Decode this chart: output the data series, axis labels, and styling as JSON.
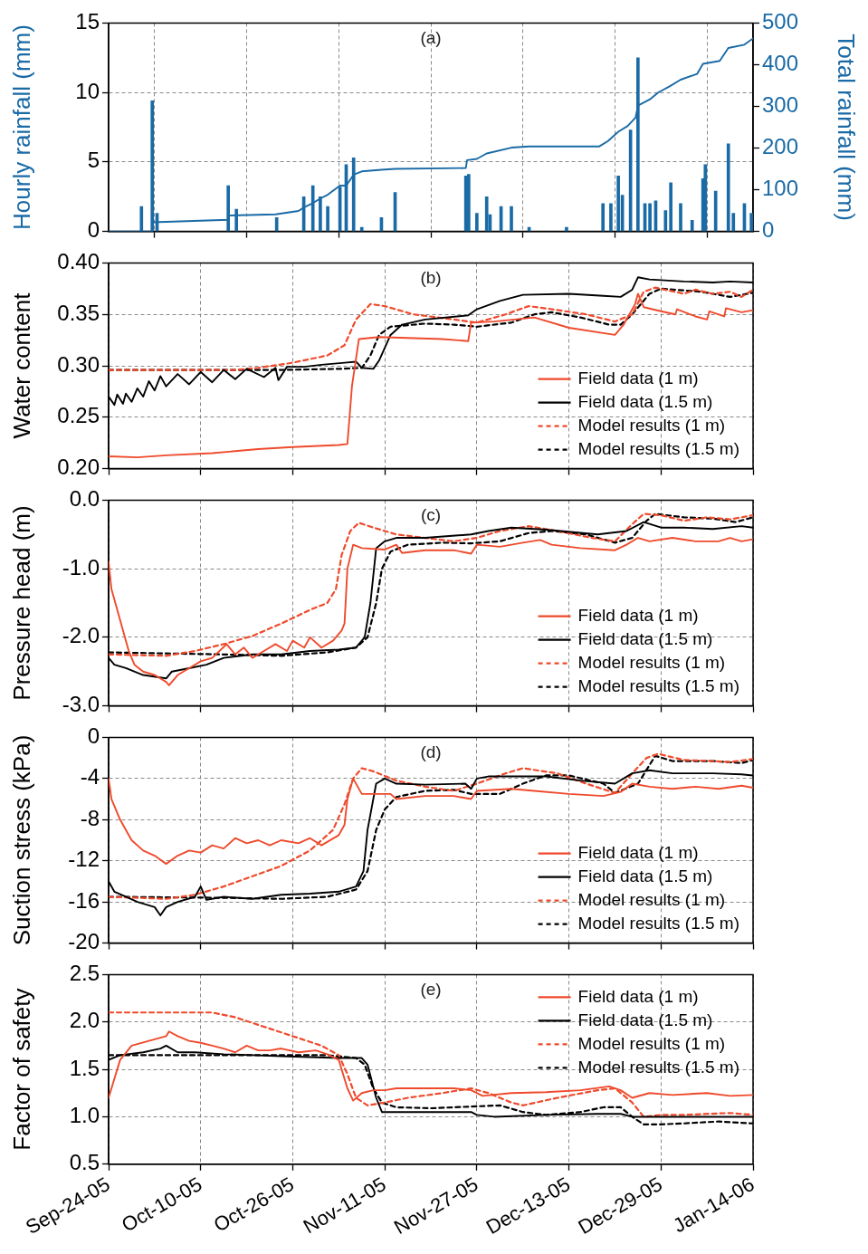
{
  "chart_data": [
    {
      "type": "bar",
      "annotations": [
        "(a)"
      ],
      "ylabel": "Hourly rainfall (mm)",
      "y2label": "Total rainfall (mm)",
      "xlim": [
        "2005-09-24",
        "2006-01-14"
      ],
      "xticks": [
        {
          "value": "2005-09-24",
          "label": null
        },
        {
          "value": "2005-10-10",
          "label": null
        },
        {
          "value": "2005-10-26",
          "label": null
        },
        {
          "value": "2005-11-11",
          "label": null
        },
        {
          "value": "2005-11-27",
          "label": null
        },
        {
          "value": "2005-12-13",
          "label": null
        },
        {
          "value": "2005-12-29",
          "label": null
        },
        {
          "value": "2006-01-14",
          "label": null
        }
      ],
      "ylim": [
        0,
        15
      ],
      "yticks": [
        0,
        5,
        10,
        15
      ],
      "y2lim": [
        0,
        500
      ],
      "y2ticks": [
        0,
        100,
        200,
        300,
        400,
        500
      ],
      "grid": true,
      "tick_labels": "y",
      "series": [
        {
          "type": "bar",
          "color": "#1a6aa6",
          "x": [
            "2005-09-29T17:00",
            "2005-10-01T14:00",
            "2005-10-02T10:00",
            "2005-10-14T19:00",
            "2005-10-16T05:00",
            "2005-10-23T05:00",
            "2005-10-27T22:00",
            "2005-10-29T12:00",
            "2005-10-30T19:00",
            "2005-11-01T02:00",
            "2005-11-03T05:00",
            "2005-11-04T07:00",
            "2005-11-05T14:00",
            "2005-11-07T00:00",
            "2005-11-10T10:00",
            "2005-11-12T19:00",
            "2005-11-25T02:00",
            "2005-11-25T14:00",
            "2005-11-27T00:00",
            "2005-11-28T17:00",
            "2005-11-29T07:00",
            "2005-12-01T05:00",
            "2005-12-03T00:00",
            "2005-12-06T02:00",
            "2005-12-12T14:00",
            "2005-12-18T22:00",
            "2005-12-20T07:00",
            "2005-12-21T14:00",
            "2005-12-22T07:00",
            "2005-12-23T17:00",
            "2005-12-25T00:00",
            "2005-12-26T05:00",
            "2005-12-27T02:00",
            "2005-12-28T02:00",
            "2005-12-29T19:00",
            "2005-12-30T17:00",
            "2006-01-01T10:00",
            "2006-01-03T10:00",
            "2006-01-05T07:00",
            "2006-01-05T17:00",
            "2006-01-07T12:00",
            "2006-01-09T17:00",
            "2006-01-10T14:00",
            "2006-01-12T12:00",
            "2006-01-13T17:00"
          ],
          "values": [
            1.8,
            9.4,
            1.3,
            3.3,
            1.6,
            1.0,
            2.5,
            3.3,
            2.5,
            1.8,
            3.2,
            4.8,
            5.3,
            0.3,
            1.0,
            2.8,
            4.0,
            4.1,
            1.3,
            2.5,
            1.2,
            1.8,
            1.8,
            0.3,
            0.3,
            2.0,
            2.0,
            4.0,
            2.6,
            7.3,
            12.5,
            2.0,
            2.0,
            2.2,
            1.5,
            3.5,
            2.0,
            0.8,
            3.8,
            4.8,
            2.9,
            6.3,
            1.3,
            2.0,
            1.3
          ]
        },
        {
          "type": "line",
          "axis": "y2",
          "color": "#1a6aa6",
          "line_style": "solid",
          "x": [
            "2005-09-24",
            "2005-10-01T14:00",
            "2005-10-01T14:00",
            "2005-10-14T19:00",
            "2005-10-14T19:00",
            "2005-10-23",
            "2005-10-27",
            "2005-10-28",
            "2005-10-29T12:00",
            "2005-10-30T19:00",
            "2005-11-01T02:00",
            "2005-11-03T05:00",
            "2005-11-04T07:00",
            "2005-11-05T14:00",
            "2005-11-07",
            "2005-11-10T10:00",
            "2005-11-12T19:00",
            "2005-11-25T02:00",
            "2005-11-25T07:00",
            "2005-11-27",
            "2005-11-28T17:00",
            "2005-12-03",
            "2005-12-06T02:00",
            "2005-12-18T07:00",
            "2005-12-19T19:00",
            "2005-12-21T14:00",
            "2005-12-23T05:00",
            "2005-12-24T14:00",
            "2005-12-25",
            "2005-12-27T02:00",
            "2005-12-28T12:00",
            "2005-12-30T12:00",
            "2006-01-01T10:00",
            "2006-01-04T07:00",
            "2006-01-05T07:00",
            "2006-01-08T05:00",
            "2006-01-09T17:00",
            "2006-01-12T12:00",
            "2006-01-14"
          ],
          "values": [
            0,
            0,
            22,
            28,
            38,
            41,
            49,
            58,
            68,
            79,
            88,
            110,
            110,
            136,
            144,
            148,
            150,
            152,
            171,
            174,
            187,
            201,
            204,
            204,
            217,
            239,
            253,
            273,
            302,
            317,
            333,
            348,
            364,
            378,
            402,
            409,
            440,
            448,
            463
          ]
        }
      ]
    },
    {
      "type": "line",
      "annotations": [
        "(b)"
      ],
      "ylabel": "Water content",
      "xlim": [
        "2005-09-24",
        "2006-01-14"
      ],
      "xticks": [
        {
          "value": "2005-09-24",
          "label": null
        },
        {
          "value": "2005-10-10",
          "label": null
        },
        {
          "value": "2005-10-26",
          "label": null
        },
        {
          "value": "2005-11-11",
          "label": null
        },
        {
          "value": "2005-11-27",
          "label": null
        },
        {
          "value": "2005-12-13",
          "label": null
        },
        {
          "value": "2005-12-29",
          "label": null
        },
        {
          "value": "2006-01-14",
          "label": null
        }
      ],
      "ylim": [
        0.2,
        0.4
      ],
      "yticks": [
        {
          "value": 0.2,
          "label": "0.20"
        },
        0.25,
        {
          "value": 0.3,
          "label": "0.30"
        },
        0.35,
        {
          "value": 0.4,
          "label": "0.40"
        }
      ],
      "grid": true,
      "legend": "bottom right",
      "tick_labels": "y",
      "series": [
        {
          "name": "Field data (1 m)",
          "color": "#ef4a2c",
          "line_style": "solid",
          "x": [
            "2005-09-24",
            "2005-09-29",
            "2005-10-04",
            "2005-10-12",
            "2005-10-20",
            "2005-10-26",
            "2005-11-03",
            "2005-11-04T12:00",
            "2005-11-05T07:00",
            "2005-11-06T12:00",
            "2005-11-10",
            "2005-11-21",
            "2005-11-25T12:00",
            "2005-11-26",
            "2005-11-30",
            "2005-12-07",
            "2005-12-13",
            "2005-12-21",
            "2005-12-22T12:00",
            "2005-12-24T12:00",
            "2005-12-25",
            "2005-12-26",
            "2005-12-29",
            "2005-12-31T12:00",
            "2005-12-31T19:00",
            "2006-01-04",
            "2006-01-06",
            "2006-01-06T10:00",
            "2006-01-09",
            "2006-01-09T07:00",
            "2006-01-12",
            "2006-01-14"
          ],
          "values": [
            0.212,
            0.211,
            0.213,
            0.215,
            0.219,
            0.221,
            0.223,
            0.224,
            0.28,
            0.326,
            0.328,
            0.326,
            0.324,
            0.342,
            0.343,
            0.347,
            0.337,
            0.33,
            0.34,
            0.36,
            0.37,
            0.357,
            0.353,
            0.35,
            0.355,
            0.348,
            0.345,
            0.353,
            0.348,
            0.356,
            0.352,
            0.354
          ]
        },
        {
          "name": "Field data (1.5 m)",
          "color": "#000000",
          "line_style": "solid",
          "x": [
            "2005-09-24",
            "2005-09-25",
            "2005-09-25T12:00",
            "2005-09-26T12:00",
            "2005-09-27",
            "2005-09-28",
            "2005-09-29",
            "2005-09-30",
            "2005-10-01",
            "2005-10-02",
            "2005-10-03",
            "2005-10-04",
            "2005-10-06",
            "2005-10-08",
            "2005-10-10",
            "2005-10-12",
            "2005-10-14",
            "2005-10-16",
            "2005-10-18",
            "2005-10-21",
            "2005-10-23",
            "2005-10-23T12:00",
            "2005-10-25",
            "2005-10-28",
            "2005-10-31",
            "2005-11-04",
            "2005-11-06",
            "2005-11-07",
            "2005-11-09",
            "2005-11-10",
            "2005-11-12",
            "2005-11-14",
            "2005-11-18",
            "2005-11-25T12:00",
            "2005-11-27",
            "2005-12-01",
            "2005-12-05",
            "2005-12-13",
            "2005-12-19",
            "2005-12-22",
            "2005-12-24",
            "2005-12-25",
            "2005-12-27",
            "2006-01-02",
            "2006-01-07",
            "2006-01-10",
            "2006-01-14"
          ],
          "values": [
            0.27,
            0.262,
            0.272,
            0.263,
            0.273,
            0.265,
            0.278,
            0.27,
            0.285,
            0.276,
            0.29,
            0.28,
            0.292,
            0.282,
            0.294,
            0.284,
            0.296,
            0.287,
            0.297,
            0.289,
            0.298,
            0.286,
            0.299,
            0.299,
            0.301,
            0.303,
            0.304,
            0.298,
            0.297,
            0.305,
            0.33,
            0.34,
            0.345,
            0.349,
            0.355,
            0.363,
            0.369,
            0.37,
            0.368,
            0.367,
            0.374,
            0.386,
            0.384,
            0.382,
            0.381,
            0.382,
            0.381
          ]
        },
        {
          "name": "Model results (1 m)",
          "color": "#ef4a2c",
          "line_style": "dashed",
          "x": [
            "2005-09-24",
            "2005-10-16",
            "2005-10-20",
            "2005-10-26",
            "2005-11-01",
            "2005-11-04",
            "2005-11-06",
            "2005-11-08T12:00",
            "2005-11-11",
            "2005-11-16",
            "2005-11-23",
            "2005-11-27",
            "2005-12-02",
            "2005-12-06",
            "2005-12-10",
            "2005-12-16",
            "2005-12-21",
            "2005-12-24",
            "2005-12-26",
            "2005-12-28",
            "2006-01-02",
            "2006-01-04",
            "2006-01-07",
            "2006-01-10",
            "2006-01-12",
            "2006-01-14"
          ],
          "values": [
            0.296,
            0.296,
            0.298,
            0.303,
            0.31,
            0.32,
            0.345,
            0.36,
            0.358,
            0.35,
            0.345,
            0.342,
            0.35,
            0.358,
            0.355,
            0.35,
            0.343,
            0.35,
            0.372,
            0.376,
            0.37,
            0.374,
            0.37,
            0.372,
            0.367,
            0.374
          ]
        },
        {
          "name": "Model results (1.5 m)",
          "color": "#000000",
          "line_style": "dashed",
          "x": [
            "2005-09-24",
            "2005-10-24",
            "2005-11-03",
            "2005-11-07",
            "2005-11-08T12:00",
            "2005-11-10",
            "2005-11-12",
            "2005-11-18",
            "2005-11-23",
            "2005-11-27",
            "2005-12-03",
            "2005-12-07",
            "2005-12-10",
            "2005-12-15",
            "2005-12-20",
            "2005-12-22",
            "2005-12-24",
            "2005-12-27",
            "2005-12-29",
            "2006-01-05",
            "2006-01-10",
            "2006-01-14"
          ],
          "values": [
            0.296,
            0.296,
            0.297,
            0.298,
            0.31,
            0.33,
            0.338,
            0.341,
            0.34,
            0.338,
            0.342,
            0.35,
            0.352,
            0.347,
            0.34,
            0.34,
            0.35,
            0.37,
            0.375,
            0.372,
            0.367,
            0.371
          ]
        }
      ]
    },
    {
      "type": "line",
      "annotations": [
        "(c)"
      ],
      "ylabel": "Pressure head (m)",
      "xlim": [
        "2005-09-24",
        "2006-01-14"
      ],
      "xticks": [
        {
          "value": "2005-09-24",
          "label": null
        },
        {
          "value": "2005-10-10",
          "label": null
        },
        {
          "value": "2005-10-26",
          "label": null
        },
        {
          "value": "2005-11-11",
          "label": null
        },
        {
          "value": "2005-11-27",
          "label": null
        },
        {
          "value": "2005-12-13",
          "label": null
        },
        {
          "value": "2005-12-29",
          "label": null
        },
        {
          "value": "2006-01-14",
          "label": null
        }
      ],
      "ylim": [
        -3,
        0
      ],
      "yticks": [
        {
          "value": -3,
          "label": "-3.0"
        },
        {
          "value": -2,
          "label": "-2.0"
        },
        {
          "value": -1,
          "label": "-1.0"
        },
        {
          "value": 0,
          "label": "0.0"
        }
      ],
      "grid": true,
      "legend": "bottom right",
      "tick_labels": "y",
      "series": [
        {
          "name": "Field data (1 m)",
          "color": "#ef4a2c",
          "line_style": "solid",
          "x": [
            "2005-09-24",
            "2005-09-24T12:00",
            "2005-09-25T12:00",
            "2005-09-26T12:00",
            "2005-09-27T12:00",
            "2005-09-28T12:00",
            "2005-09-30",
            "2005-10-02",
            "2005-10-04",
            "2005-10-04T12:00",
            "2005-10-06",
            "2005-10-08",
            "2005-10-10",
            "2005-10-12",
            "2005-10-14T12:00",
            "2005-10-16",
            "2005-10-17T12:00",
            "2005-10-19",
            "2005-10-21",
            "2005-10-23",
            "2005-10-25",
            "2005-10-26",
            "2005-10-28",
            "2005-10-29",
            "2005-10-31",
            "2005-11-02",
            "2005-11-03T12:00",
            "2005-11-04",
            "2005-11-04T12:00",
            "2005-11-05T12:00",
            "2005-11-07",
            "2005-11-11",
            "2005-11-13",
            "2005-11-14",
            "2005-11-18",
            "2005-11-23",
            "2005-11-26",
            "2005-11-27",
            "2005-12-01",
            "2005-12-05",
            "2005-12-08",
            "2005-12-10",
            "2005-12-15",
            "2005-12-21",
            "2005-12-23",
            "2005-12-25",
            "2005-12-27",
            "2005-12-31",
            "2006-01-04",
            "2006-01-08",
            "2006-01-10",
            "2006-01-12",
            "2006-01-14"
          ],
          "values": [
            -0.9,
            -1.3,
            -1.6,
            -1.9,
            -2.2,
            -2.4,
            -2.5,
            -2.55,
            -2.65,
            -2.7,
            -2.55,
            -2.45,
            -2.35,
            -2.3,
            -2.1,
            -2.25,
            -2.15,
            -2.3,
            -2.2,
            -2.1,
            -2.2,
            -2.05,
            -2.15,
            -2.0,
            -2.15,
            -2.05,
            -1.9,
            -1.8,
            -1.0,
            -0.65,
            -0.7,
            -0.72,
            -0.65,
            -0.77,
            -0.73,
            -0.73,
            -0.78,
            -0.65,
            -0.68,
            -0.62,
            -0.58,
            -0.65,
            -0.7,
            -0.73,
            -0.65,
            -0.55,
            -0.6,
            -0.55,
            -0.6,
            -0.6,
            -0.55,
            -0.6,
            -0.57
          ]
        },
        {
          "name": "Field data (1.5 m)",
          "color": "#000000",
          "line_style": "solid",
          "x": [
            "2005-09-24",
            "2005-09-25",
            "2005-09-27",
            "2005-09-30",
            "2005-10-04",
            "2005-10-05",
            "2005-10-08",
            "2005-10-11",
            "2005-10-14",
            "2005-10-19",
            "2005-10-24",
            "2005-10-29",
            "2005-11-03",
            "2005-11-06",
            "2005-11-07T12:00",
            "2005-11-08T12:00",
            "2005-11-09T12:00",
            "2005-11-11",
            "2005-11-13",
            "2005-11-18",
            "2005-11-26",
            "2005-11-29",
            "2005-12-03",
            "2005-12-09",
            "2005-12-18",
            "2005-12-23",
            "2005-12-26",
            "2005-12-29",
            "2006-01-02",
            "2006-01-07",
            "2006-01-12",
            "2006-01-14"
          ],
          "values": [
            -2.3,
            -2.4,
            -2.45,
            -2.55,
            -2.6,
            -2.5,
            -2.45,
            -2.4,
            -2.3,
            -2.25,
            -2.25,
            -2.2,
            -2.18,
            -2.15,
            -2.0,
            -1.5,
            -0.7,
            -0.6,
            -0.55,
            -0.55,
            -0.5,
            -0.45,
            -0.4,
            -0.43,
            -0.5,
            -0.45,
            -0.32,
            -0.4,
            -0.4,
            -0.42,
            -0.38,
            -0.4
          ]
        },
        {
          "name": "Model results (1 m)",
          "color": "#ef4a2c",
          "line_style": "dashed",
          "x": [
            "2005-09-24",
            "2005-10-04",
            "2005-10-09",
            "2005-10-14",
            "2005-10-19",
            "2005-10-24",
            "2005-10-29",
            "2005-11-01",
            "2005-11-02T12:00",
            "2005-11-03T12:00",
            "2005-11-05",
            "2005-11-06T12:00",
            "2005-11-09",
            "2005-11-13",
            "2005-11-18",
            "2005-11-23",
            "2005-11-27",
            "2005-12-01",
            "2005-12-06",
            "2005-12-11",
            "2005-12-17",
            "2005-12-21",
            "2005-12-24",
            "2005-12-26",
            "2005-12-29",
            "2006-01-02",
            "2006-01-06",
            "2006-01-10",
            "2006-01-14"
          ],
          "values": [
            -2.25,
            -2.27,
            -2.2,
            -2.1,
            -1.98,
            -1.8,
            -1.6,
            -1.5,
            -1.3,
            -0.8,
            -0.45,
            -0.33,
            -0.4,
            -0.5,
            -0.55,
            -0.6,
            -0.55,
            -0.45,
            -0.38,
            -0.45,
            -0.55,
            -0.6,
            -0.35,
            -0.2,
            -0.22,
            -0.3,
            -0.25,
            -0.28,
            -0.22
          ]
        },
        {
          "name": "Model results (1.5 m)",
          "color": "#000000",
          "line_style": "dashed",
          "x": [
            "2005-09-24",
            "2005-10-14",
            "2005-10-24",
            "2005-11-01",
            "2005-11-06",
            "2005-11-08",
            "2005-11-09T12:00",
            "2005-11-10T12:00",
            "2005-11-12",
            "2005-11-15",
            "2005-11-21",
            "2005-11-26",
            "2005-12-01",
            "2005-12-06",
            "2005-12-10",
            "2005-12-16",
            "2005-12-21",
            "2005-12-24",
            "2005-12-26T12:00",
            "2005-12-28",
            "2006-01-02",
            "2006-01-07",
            "2006-01-11",
            "2006-01-14"
          ],
          "values": [
            -2.22,
            -2.25,
            -2.27,
            -2.22,
            -2.15,
            -2.0,
            -1.5,
            -1.0,
            -0.75,
            -0.65,
            -0.62,
            -0.63,
            -0.6,
            -0.48,
            -0.45,
            -0.5,
            -0.62,
            -0.55,
            -0.3,
            -0.2,
            -0.25,
            -0.27,
            -0.32,
            -0.25
          ]
        }
      ]
    },
    {
      "type": "line",
      "annotations": [
        "(d)"
      ],
      "ylabel": "Suction stress (kPa)",
      "xlim": [
        "2005-09-24",
        "2006-01-14"
      ],
      "xticks": [
        {
          "value": "2005-09-24",
          "label": null
        },
        {
          "value": "2005-10-10",
          "label": null
        },
        {
          "value": "2005-10-26",
          "label": null
        },
        {
          "value": "2005-11-11",
          "label": null
        },
        {
          "value": "2005-11-27",
          "label": null
        },
        {
          "value": "2005-12-13",
          "label": null
        },
        {
          "value": "2005-12-29",
          "label": null
        },
        {
          "value": "2006-01-14",
          "label": null
        }
      ],
      "ylim": [
        -20,
        0
      ],
      "yticks": [
        -20,
        -16,
        -12,
        -8,
        -4,
        0
      ],
      "grid": true,
      "legend": "bottom right",
      "tick_labels": "y",
      "series": [
        {
          "name": "Field data (1 m)",
          "color": "#ef4a2c",
          "line_style": "solid",
          "x": [
            "2005-09-24",
            "2005-09-24T12:00",
            "2005-09-26",
            "2005-09-28",
            "2005-09-30",
            "2005-10-02",
            "2005-10-04",
            "2005-10-06",
            "2005-10-08",
            "2005-10-10",
            "2005-10-12",
            "2005-10-14",
            "2005-10-16",
            "2005-10-18",
            "2005-10-20",
            "2005-10-22",
            "2005-10-24",
            "2005-10-27",
            "2005-10-29",
            "2005-10-31",
            "2005-11-03",
            "2005-11-04",
            "2005-11-04T12:00",
            "2005-11-05T12:00",
            "2005-11-07",
            "2005-11-10",
            "2005-11-12",
            "2005-11-13",
            "2005-11-18",
            "2005-11-23",
            "2005-11-26",
            "2005-11-27",
            "2005-12-03",
            "2005-12-07",
            "2005-12-13",
            "2005-12-19",
            "2005-12-22",
            "2005-12-24",
            "2005-12-27",
            "2005-12-31",
            "2006-01-04",
            "2006-01-08",
            "2006-01-12",
            "2006-01-14"
          ],
          "values": [
            -4,
            -6,
            -8,
            -10,
            -11,
            -11.5,
            -12.3,
            -11.5,
            -11,
            -11.2,
            -10.5,
            -10.8,
            -9.8,
            -10.3,
            -10,
            -10.5,
            -10,
            -10.3,
            -9.8,
            -10.5,
            -9.5,
            -8.5,
            -6,
            -4,
            -5.5,
            -5.5,
            -5.5,
            -6,
            -5.7,
            -5.7,
            -6,
            -5.2,
            -5.0,
            -5.2,
            -5.5,
            -5.7,
            -5.3,
            -4.5,
            -4.8,
            -5.0,
            -4.8,
            -5.0,
            -4.7,
            -4.9
          ]
        },
        {
          "name": "Field data (1.5 m)",
          "color": "#000000",
          "line_style": "solid",
          "x": [
            "2005-09-24",
            "2005-09-25",
            "2005-09-27",
            "2005-09-29",
            "2005-10-02",
            "2005-10-03",
            "2005-10-04",
            "2005-10-06",
            "2005-10-09",
            "2005-10-10",
            "2005-10-11",
            "2005-10-14",
            "2005-10-19",
            "2005-10-24",
            "2005-10-29",
            "2005-11-03",
            "2005-11-06",
            "2005-11-07T07:00",
            "2005-11-08",
            "2005-11-09T12:00",
            "2005-11-11",
            "2005-11-13",
            "2005-11-18",
            "2005-11-25",
            "2005-11-26",
            "2005-11-27",
            "2005-11-29",
            "2005-12-03",
            "2005-12-09",
            "2005-12-15",
            "2005-12-21",
            "2005-12-24",
            "2005-12-27",
            "2005-12-31",
            "2006-01-07",
            "2006-01-12",
            "2006-01-14"
          ],
          "values": [
            -14,
            -15,
            -15.5,
            -16,
            -16.5,
            -17.3,
            -16.5,
            -16,
            -15.5,
            -14.5,
            -15.8,
            -15.5,
            -15.7,
            -15.3,
            -15.2,
            -15,
            -14.5,
            -13,
            -9,
            -4.5,
            -4,
            -4.5,
            -4.6,
            -4.5,
            -5.0,
            -4.0,
            -3.8,
            -3.8,
            -3.8,
            -4.2,
            -4.5,
            -3.5,
            -3.2,
            -3.5,
            -3.5,
            -3.6,
            -3.7
          ]
        },
        {
          "name": "Model results (1 m)",
          "color": "#ef4a2c",
          "line_style": "dashed",
          "x": [
            "2005-09-24",
            "2005-10-04",
            "2005-10-09",
            "2005-10-14",
            "2005-10-19",
            "2005-10-24",
            "2005-10-29",
            "2005-11-02",
            "2005-11-04",
            "2005-11-05T12:00",
            "2005-11-07",
            "2005-11-09",
            "2005-11-13",
            "2005-11-18",
            "2005-11-23",
            "2005-11-27",
            "2005-12-02",
            "2005-12-05",
            "2005-12-11",
            "2005-12-16",
            "2005-12-21",
            "2005-12-24",
            "2005-12-26T12:00",
            "2005-12-28T12:00",
            "2006-01-02",
            "2006-01-07",
            "2006-01-10",
            "2006-01-14"
          ],
          "values": [
            -15.5,
            -15.7,
            -15.3,
            -14.5,
            -13.5,
            -12.5,
            -11,
            -9,
            -6.5,
            -4,
            -3,
            -3.3,
            -4.2,
            -4.8,
            -5.2,
            -4.5,
            -3.5,
            -3.0,
            -3.5,
            -4.5,
            -5.4,
            -3.5,
            -2.0,
            -1.6,
            -2.2,
            -2.3,
            -2.4,
            -2.1
          ]
        },
        {
          "name": "Model results (1.5 m)",
          "color": "#000000",
          "line_style": "dashed",
          "x": [
            "2005-09-24",
            "2005-10-14",
            "2005-10-24",
            "2005-11-01",
            "2005-11-06",
            "2005-11-08",
            "2005-11-09T12:00",
            "2005-11-11",
            "2005-11-13",
            "2005-11-18",
            "2005-11-23",
            "2005-11-26",
            "2005-12-01",
            "2005-12-05",
            "2005-12-09",
            "2005-12-13",
            "2005-12-19",
            "2005-12-21",
            "2005-12-25",
            "2005-12-28",
            "2005-12-31",
            "2006-01-07",
            "2006-01-12",
            "2006-01-14"
          ],
          "values": [
            -15.5,
            -15.6,
            -15.7,
            -15.5,
            -14.8,
            -13,
            -9,
            -7,
            -5.8,
            -5.2,
            -5.1,
            -5.5,
            -5.5,
            -4.5,
            -3.7,
            -3.7,
            -4.5,
            -5.4,
            -4.5,
            -1.8,
            -2.3,
            -2.3,
            -2.5,
            -2.2
          ]
        }
      ]
    },
    {
      "type": "line",
      "annotations": [
        "(e)"
      ],
      "ylabel": "Factor of safety",
      "xlim": [
        "2005-09-24",
        "2006-01-14"
      ],
      "xticks": [
        {
          "value": "2005-09-24",
          "label": "Sep-24-05"
        },
        {
          "value": "2005-10-10",
          "label": "Oct-10-05"
        },
        {
          "value": "2005-10-26",
          "label": "Oct-26-05"
        },
        {
          "value": "2005-11-11",
          "label": "Nov-11-05"
        },
        {
          "value": "2005-11-27",
          "label": "Nov-27-05"
        },
        {
          "value": "2005-12-13",
          "label": "Dec-13-05"
        },
        {
          "value": "2005-12-29",
          "label": "Dec-29-05"
        },
        {
          "value": "2006-01-14",
          "label": "Jan-14-06"
        }
      ],
      "ylim": [
        0.5,
        2.5
      ],
      "yticks": [
        0.5,
        {
          "value": 1,
          "label": "1.0"
        },
        1.5,
        {
          "value": 2,
          "label": "2.0"
        },
        2.5
      ],
      "grid": true,
      "legend": "top right",
      "series": [
        {
          "name": "Field data (1 m)",
          "color": "#ef4a2c",
          "line_style": "solid",
          "x": [
            "2005-09-24",
            "2005-09-25",
            "2005-09-26",
            "2005-09-28",
            "2005-10-01",
            "2005-10-04",
            "2005-10-04T12:00",
            "2005-10-06",
            "2005-10-08",
            "2005-10-10",
            "2005-10-12",
            "2005-10-14",
            "2005-10-16",
            "2005-10-18",
            "2005-10-20",
            "2005-10-22",
            "2005-10-24",
            "2005-10-27",
            "2005-10-30",
            "2005-11-01",
            "2005-11-03",
            "2005-11-04T12:00",
            "2005-11-05T12:00",
            "2005-11-07",
            "2005-11-09",
            "2005-11-11",
            "2005-11-13",
            "2005-11-19",
            "2005-11-23",
            "2005-11-26",
            "2005-11-28",
            "2005-12-03",
            "2005-12-09",
            "2005-12-15",
            "2005-12-20",
            "2005-12-22",
            "2005-12-24",
            "2005-12-27",
            "2005-12-31",
            "2006-01-06",
            "2006-01-10",
            "2006-01-14"
          ],
          "values": [
            1.2,
            1.4,
            1.6,
            1.75,
            1.8,
            1.85,
            1.9,
            1.85,
            1.8,
            1.78,
            1.75,
            1.72,
            1.68,
            1.75,
            1.7,
            1.7,
            1.72,
            1.68,
            1.7,
            1.66,
            1.6,
            1.3,
            1.17,
            1.25,
            1.28,
            1.28,
            1.3,
            1.3,
            1.3,
            1.28,
            1.22,
            1.25,
            1.26,
            1.28,
            1.32,
            1.28,
            1.2,
            1.25,
            1.23,
            1.25,
            1.22,
            1.23
          ]
        },
        {
          "name": "Field data (1.5 m)",
          "color": "#000000",
          "line_style": "solid",
          "x": [
            "2005-09-24",
            "2005-09-26",
            "2005-09-30",
            "2005-10-03",
            "2005-10-04",
            "2005-10-06",
            "2005-10-09",
            "2005-10-14",
            "2005-10-19",
            "2005-10-24",
            "2005-10-29",
            "2005-11-03",
            "2005-11-07",
            "2005-11-08",
            "2005-11-09T12:00",
            "2005-11-10T12:00",
            "2005-11-13",
            "2005-11-19",
            "2005-11-26",
            "2005-11-27",
            "2005-11-30",
            "2005-12-09",
            "2005-12-18",
            "2005-12-22",
            "2005-12-24",
            "2005-12-28",
            "2006-01-07",
            "2006-01-14"
          ],
          "values": [
            1.6,
            1.65,
            1.68,
            1.72,
            1.75,
            1.68,
            1.68,
            1.66,
            1.65,
            1.64,
            1.63,
            1.62,
            1.62,
            1.55,
            1.2,
            1.05,
            1.05,
            1.05,
            1.05,
            1.02,
            1.0,
            1.02,
            1.03,
            1.03,
            1.0,
            1.0,
            1.0,
            1.0
          ]
        },
        {
          "name": "Model results (1 m)",
          "color": "#ef4a2c",
          "line_style": "dashed",
          "x": [
            "2005-09-24",
            "2005-10-12",
            "2005-10-16",
            "2005-10-21",
            "2005-10-26",
            "2005-10-31",
            "2005-11-03",
            "2005-11-04T12:00",
            "2005-11-06",
            "2005-11-08",
            "2005-11-11",
            "2005-11-15",
            "2005-11-21",
            "2005-11-26",
            "2005-11-29",
            "2005-12-03",
            "2005-12-05",
            "2005-12-11",
            "2005-12-18",
            "2005-12-21",
            "2005-12-24",
            "2005-12-26",
            "2005-12-29",
            "2006-01-02",
            "2006-01-10",
            "2006-01-14"
          ],
          "values": [
            2.1,
            2.1,
            2.05,
            1.95,
            1.85,
            1.75,
            1.65,
            1.45,
            1.2,
            1.12,
            1.15,
            1.2,
            1.25,
            1.3,
            1.25,
            1.15,
            1.12,
            1.2,
            1.28,
            1.3,
            1.15,
            1.0,
            1.02,
            1.02,
            1.04,
            1.02
          ]
        },
        {
          "name": "Model results (1.5 m)",
          "color": "#000000",
          "line_style": "dashed",
          "x": [
            "2005-09-24",
            "2005-11-01",
            "2005-11-06",
            "2005-11-07T12:00",
            "2005-11-09",
            "2005-11-10T12:00",
            "2005-11-13",
            "2005-11-19",
            "2005-11-27",
            "2005-12-01",
            "2005-12-05",
            "2005-12-09",
            "2005-12-15",
            "2005-12-19",
            "2005-12-22",
            "2005-12-24",
            "2005-12-26",
            "2005-12-29",
            "2006-01-02",
            "2006-01-08",
            "2006-01-14"
          ],
          "values": [
            1.65,
            1.65,
            1.62,
            1.55,
            1.3,
            1.15,
            1.1,
            1.09,
            1.11,
            1.12,
            1.05,
            1.02,
            1.05,
            1.1,
            1.1,
            1.0,
            0.92,
            0.92,
            0.93,
            0.95,
            0.93
          ]
        }
      ]
    }
  ]
}
